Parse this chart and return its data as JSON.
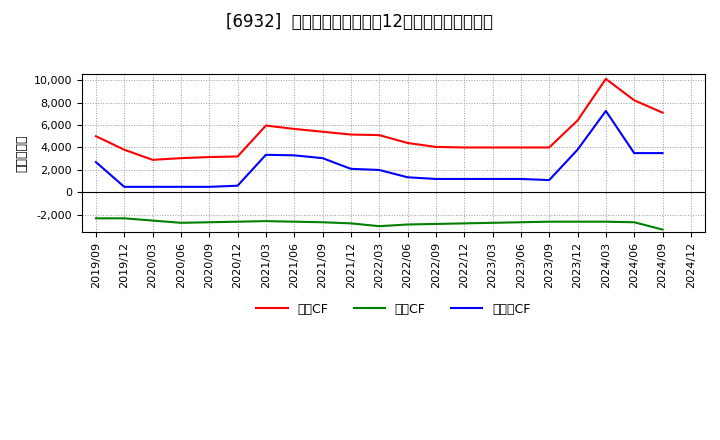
{
  "title": "[6932]  キャッシュフローの12か月移動合計の推移",
  "ylabel": "（百万円）",
  "xlabels": [
    "2019/09",
    "2019/12",
    "2020/03",
    "2020/06",
    "2020/09",
    "2020/12",
    "2021/03",
    "2021/06",
    "2021/09",
    "2021/12",
    "2022/03",
    "2022/06",
    "2022/09",
    "2022/12",
    "2023/03",
    "2023/06",
    "2023/09",
    "2023/12",
    "2024/03",
    "2024/06",
    "2024/09",
    "2024/12"
  ],
  "operating_cf": [
    5000,
    3800,
    2900,
    3050,
    3150,
    3200,
    5950,
    5650,
    5400,
    5150,
    5100,
    4400,
    4050,
    4000,
    4000,
    4000,
    4000,
    6400,
    10100,
    8200,
    7100,
    null
  ],
  "investing_cf": [
    -2300,
    -2300,
    -2500,
    -2700,
    -2650,
    -2600,
    -2550,
    -2600,
    -2650,
    -2750,
    -3000,
    -2850,
    -2800,
    -2750,
    -2700,
    -2650,
    -2600,
    -2600,
    -2600,
    -2650,
    -3300,
    null
  ],
  "free_cf": [
    2700,
    500,
    500,
    500,
    500,
    600,
    3350,
    3300,
    3050,
    2100,
    2000,
    1350,
    1200,
    1200,
    1200,
    1200,
    1100,
    3800,
    7250,
    3500,
    3500,
    null
  ],
  "ylim": [
    -3500,
    10500
  ],
  "yticks": [
    -2000,
    0,
    2000,
    4000,
    6000,
    8000,
    10000
  ],
  "line_colors": {
    "operating_cf": "#ff0000",
    "investing_cf": "#008000",
    "free_cf": "#0000ff"
  },
  "legend_labels": [
    "営業CF",
    "投資CF",
    "フリーCF"
  ],
  "bg_color": "#ffffff",
  "plot_bg_color": "#ffffff",
  "grid_color": "#999999",
  "title_fontsize": 12,
  "label_fontsize": 9,
  "tick_fontsize": 8
}
